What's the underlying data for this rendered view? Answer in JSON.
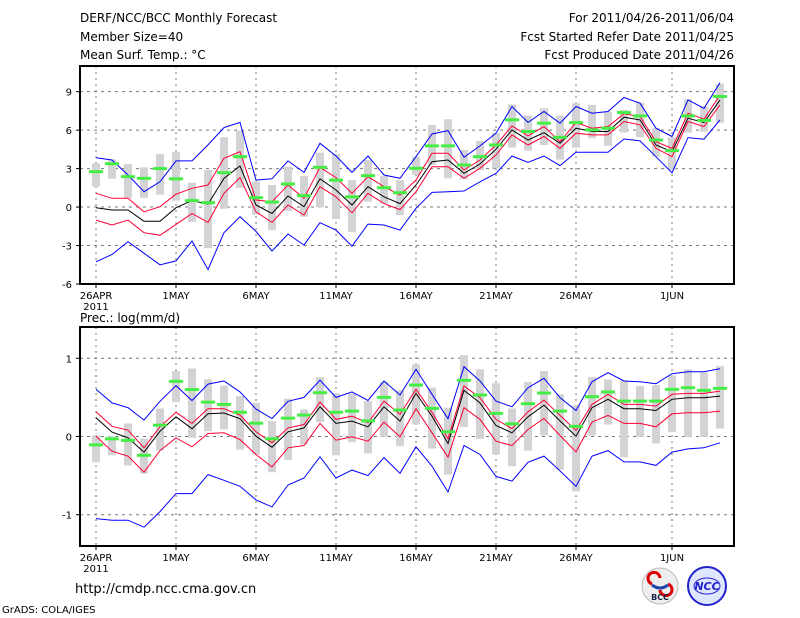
{
  "header": {
    "title": "DERF/NCC/BCC Monthly Forecast",
    "member_size": "Member Size=40",
    "variable": "Mean Surf. Temp.: °C",
    "period": "For 2011/04/26-2011/06/04",
    "start_date": "Fcst Started Refer Date 2011/04/25",
    "produced_date": "Fcst Produced Date 2011/04/26"
  },
  "footer": {
    "url": "http://cmdp.ncc.cma.gov.cn",
    "grads": "GrADS: COLA/IGES",
    "logo_bcc": "BCC",
    "logo_ncc": "NCC"
  },
  "colors": {
    "envelope": "#0000ff",
    "spread": "#ff0033",
    "mean": "#000000",
    "obs": "#44ee44",
    "box": "#d3d3d6",
    "grid": "#777777"
  },
  "chart_data": [
    {
      "type": "line",
      "title": "Mean Surf. Temp.: °C",
      "xlabel": "",
      "ylabel": "",
      "x_ticks": [
        "26APR",
        "1MAY",
        "6MAY",
        "11MAY",
        "16MAY",
        "21MAY",
        "26MAY",
        "1JUN"
      ],
      "x_tick_days": [
        0,
        5,
        10,
        15,
        20,
        25,
        30,
        36
      ],
      "x_year": "2011",
      "y_ticks": [
        "9",
        "6",
        "3",
        "0",
        "-3",
        "-6"
      ],
      "y_tick_values": [
        9,
        6,
        3,
        0,
        -3,
        -6
      ],
      "ylim": [
        -6,
        11
      ],
      "grid": true,
      "series": [
        {
          "name": "max",
          "color": "#0000ff",
          "values": [
            3.85,
            3.67,
            2.5,
            1.2,
            1.97,
            3.6,
            3.6,
            4.85,
            6.2,
            6.6,
            2.1,
            2.2,
            3.6,
            2.7,
            4.97,
            3.98,
            2.7,
            3.98,
            2.5,
            2.24,
            3.93,
            5.7,
            5.96,
            3.88,
            4.77,
            5.76,
            7.84,
            6.6,
            7.45,
            6.54,
            7.84,
            7.32,
            7.45,
            8.54,
            8.1,
            6.15,
            5.5,
            8.36,
            7.7,
            9.7
          ]
        },
        {
          "name": "upper",
          "color": "#ff0033",
          "values": [
            1.07,
            0.68,
            0.68,
            -0.37,
            0.03,
            1.0,
            1.46,
            1.72,
            3.8,
            4.32,
            0.55,
            0.42,
            1.72,
            0.68,
            3.1,
            2.3,
            1.07,
            2.37,
            1.59,
            0.94,
            2.11,
            4.2,
            4.2,
            2.89,
            3.67,
            4.84,
            6.33,
            5.55,
            6.28,
            5.1,
            6.59,
            6.15,
            6.28,
            7.27,
            7.06,
            5.1,
            4.58,
            7.32,
            6.85,
            8.75
          ]
        },
        {
          "name": "mean",
          "color": "#000000",
          "values": [
            -0.05,
            -0.23,
            -0.23,
            -1.1,
            -1.1,
            -0.05,
            0.5,
            0.23,
            2.24,
            3.2,
            0.16,
            -0.5,
            0.86,
            0.03,
            2.2,
            1.33,
            0.16,
            1.59,
            0.8,
            0.27,
            1.72,
            3.54,
            3.67,
            2.63,
            3.36,
            4.51,
            6.02,
            5.23,
            5.8,
            4.97,
            6.15,
            5.89,
            5.89,
            7.01,
            6.8,
            4.84,
            4.32,
            6.93,
            6.59,
            8.36
          ]
        },
        {
          "name": "lower",
          "color": "#ff0033",
          "values": [
            -1.02,
            -1.4,
            -1.02,
            -2.0,
            -2.2,
            -1.35,
            -0.5,
            -1.2,
            1.07,
            2.3,
            -0.37,
            -1.2,
            0.16,
            -0.63,
            1.59,
            0.8,
            -0.45,
            1.07,
            0.27,
            -0.2,
            1.2,
            3.15,
            3.15,
            2.24,
            3.02,
            4.06,
            5.63,
            4.84,
            5.5,
            4.58,
            5.76,
            5.63,
            5.63,
            6.67,
            6.41,
            4.58,
            3.93,
            6.67,
            6.28,
            7.97
          ]
        },
        {
          "name": "min",
          "color": "#0000ff",
          "values": [
            -4.27,
            -3.7,
            -2.7,
            -3.6,
            -4.5,
            -4.2,
            -2.65,
            -4.87,
            -2.0,
            -0.75,
            -1.9,
            -3.43,
            -2.1,
            -2.97,
            -1.22,
            -1.8,
            -3.05,
            -1.33,
            -1.4,
            -1.8,
            -0.1,
            1.14,
            1.2,
            1.25,
            1.97,
            2.63,
            3.98,
            3.49,
            3.98,
            3.23,
            4.27,
            4.27,
            4.27,
            5.31,
            5.16,
            3.93,
            2.68,
            5.42,
            5.29,
            6.8
          ]
        }
      ],
      "observed": [
        2.76,
        3.38,
        2.37,
        2.24,
        3.0,
        2.2,
        0.5,
        0.34,
        2.68,
        3.93,
        0.73,
        0.39,
        1.8,
        0.89,
        3.1,
        2.1,
        0.8,
        2.45,
        1.51,
        1.12,
        3.02,
        4.77,
        4.77,
        3.28,
        3.93,
        4.84,
        6.8,
        5.89,
        6.54,
        5.44,
        6.59,
        6.02,
        6.15,
        7.37,
        7.11,
        5.23,
        4.4,
        7.11,
        6.75,
        8.62
      ],
      "box_high": [
        3.41,
        3.72,
        3.36,
        3.1,
        4.14,
        4.3,
        1.9,
        2.89,
        5.44,
        5.96,
        1.97,
        1.72,
        3.15,
        2.42,
        4.24,
        4.14,
        2.1,
        3.67,
        2.42,
        2.1,
        3.93,
        6.41,
        6.85,
        4.45,
        5.16,
        5.76,
        8.0,
        7.14,
        7.7,
        7.14,
        8.1,
        7.97,
        7.45,
        7.58,
        8.15,
        6.15,
        5.44,
        8.41,
        7.84,
        9.61
      ],
      "box_low": [
        1.59,
        2.21,
        0.68,
        0.73,
        0.98,
        0.5,
        -1.15,
        -3.2,
        -0.13,
        1.5,
        -0.6,
        -1.8,
        -0.3,
        -0.76,
        -0.02,
        -0.94,
        -1.93,
        0.42,
        0.29,
        -0.63,
        2.5,
        3.28,
        2.24,
        2.16,
        2.89,
        3.02,
        4.64,
        4.4,
        4.84,
        3.7,
        4.64,
        5.37,
        4.77,
        5.81,
        5.44,
        3.93,
        2.89,
        5.81,
        5.89,
        6.59
      ]
    },
    {
      "type": "line",
      "title": "Prec.: log(mm/d)",
      "xlabel": "",
      "ylabel": "",
      "x_ticks": [
        "26APR",
        "1MAY",
        "6MAY",
        "11MAY",
        "16MAY",
        "21MAY",
        "26MAY",
        "1JUN"
      ],
      "x_tick_days": [
        0,
        5,
        10,
        15,
        20,
        25,
        30,
        36
      ],
      "x_year": "2011",
      "y_ticks": [
        "1",
        "0",
        "-1"
      ],
      "y_tick_values": [
        1,
        0,
        -1
      ],
      "ylim": [
        -1.4,
        1.4
      ],
      "grid": true,
      "series": [
        {
          "name": "max",
          "color": "#0000ff",
          "values": [
            0.603,
            0.43,
            0.37,
            0.21,
            0.45,
            0.65,
            0.46,
            0.67,
            0.71,
            0.57,
            0.35,
            0.23,
            0.45,
            0.5,
            0.72,
            0.5,
            0.57,
            0.46,
            0.71,
            0.53,
            0.859,
            0.54,
            0.227,
            0.893,
            0.71,
            0.453,
            0.38,
            0.624,
            0.744,
            0.496,
            0.333,
            0.7,
            0.816,
            0.71,
            0.7,
            0.675,
            0.803,
            0.829,
            0.829,
            0.867
          ]
        },
        {
          "name": "upper",
          "color": "#ff0033",
          "values": [
            0.316,
            0.13,
            0.08,
            -0.145,
            0.124,
            0.31,
            0.167,
            0.355,
            0.355,
            0.274,
            0.06,
            -0.08,
            0.11,
            0.154,
            0.44,
            0.218,
            0.26,
            0.175,
            0.453,
            0.282,
            0.603,
            0.31,
            -0.03,
            0.646,
            0.496,
            0.218,
            0.1,
            0.316,
            0.466,
            0.27,
            0.077,
            0.41,
            0.54,
            0.41,
            0.41,
            0.389,
            0.54,
            0.551,
            0.551,
            0.58
          ]
        },
        {
          "name": "mean",
          "color": "#000000",
          "values": [
            0.24,
            0.056,
            -0.017,
            -0.2,
            0.068,
            0.252,
            0.1,
            0.29,
            0.3,
            0.227,
            0.004,
            -0.137,
            0.06,
            0.11,
            0.38,
            0.167,
            0.197,
            0.124,
            0.38,
            0.197,
            0.551,
            0.26,
            -0.09,
            0.59,
            0.43,
            0.141,
            0.047,
            0.252,
            0.402,
            0.2,
            0.004,
            0.368,
            0.475,
            0.355,
            0.355,
            0.333,
            0.475,
            0.496,
            0.496,
            0.517
          ]
        },
        {
          "name": "lower",
          "color": "#ff0033",
          "values": [
            0.004,
            -0.188,
            -0.25,
            -0.457,
            -0.18,
            -0.017,
            -0.132,
            0.038,
            0.047,
            -0.04,
            -0.23,
            -0.389,
            -0.145,
            -0.115,
            0.167,
            -0.047,
            -0.004,
            -0.06,
            0.184,
            -0.004,
            0.355,
            0.047,
            -0.265,
            0.368,
            0.218,
            -0.06,
            -0.115,
            0.09,
            0.231,
            0.013,
            -0.197,
            0.184,
            0.27,
            0.167,
            0.167,
            0.124,
            0.29,
            0.303,
            0.303,
            0.325
          ]
        },
        {
          "name": "min",
          "color": "#0000ff",
          "values": [
            -1.05,
            -1.07,
            -1.07,
            -1.16,
            -0.96,
            -0.73,
            -0.73,
            -0.487,
            -0.56,
            -0.637,
            -0.81,
            -0.9,
            -0.62,
            -0.53,
            -0.26,
            -0.53,
            -0.43,
            -0.5,
            -0.27,
            -0.47,
            -0.132,
            -0.38,
            -0.71,
            -0.115,
            -0.23,
            -0.51,
            -0.57,
            -0.33,
            -0.25,
            -0.44,
            -0.637,
            -0.25,
            -0.18,
            -0.325,
            -0.325,
            -0.37,
            -0.2,
            -0.158,
            -0.145,
            -0.08
          ]
        }
      ],
      "observed": [
        -0.107,
        -0.03,
        -0.05,
        -0.24,
        0.145,
        0.705,
        0.6,
        0.44,
        0.41,
        0.31,
        0.17,
        -0.03,
        0.235,
        0.274,
        0.56,
        0.31,
        0.325,
        0.2,
        0.5,
        0.338,
        0.658,
        0.359,
        0.06,
        0.718,
        0.53,
        0.295,
        0.162,
        0.419,
        0.556,
        0.325,
        0.13,
        0.509,
        0.57,
        0.453,
        0.453,
        0.453,
        0.603,
        0.624,
        0.59,
        0.616
      ],
      "box_high": [
        0.013,
        0.004,
        0.167,
        -0.026,
        0.359,
        0.837,
        0.87,
        0.73,
        0.65,
        0.517,
        0.43,
        0.197,
        0.483,
        0.346,
        0.76,
        0.551,
        0.551,
        0.453,
        0.7,
        0.59,
        0.923,
        0.624,
        0.368,
        1.04,
        0.859,
        0.68,
        0.359,
        0.697,
        0.837,
        0.54,
        0.397,
        0.76,
        0.73,
        0.718,
        0.646,
        0.658,
        0.782,
        0.859,
        0.816,
        0.9
      ],
      "box_low": [
        -0.33,
        -0.24,
        -0.37,
        -0.475,
        -0.18,
        0.44,
        -0.017,
        0.068,
        0.09,
        -0.167,
        -0.23,
        -0.457,
        -0.3,
        -0.1,
        0.184,
        -0.24,
        -0.073,
        -0.218,
        -0.004,
        -0.124,
        0.154,
        -0.154,
        -0.487,
        0.12,
        -0.03,
        -0.23,
        -0.38,
        -0.18,
        0.013,
        -0.423,
        -0.7,
        0.013,
        0.154,
        -0.265,
        -0.004,
        -0.09,
        0.056,
        -0.004,
        -0.004,
        0.103
      ]
    }
  ]
}
